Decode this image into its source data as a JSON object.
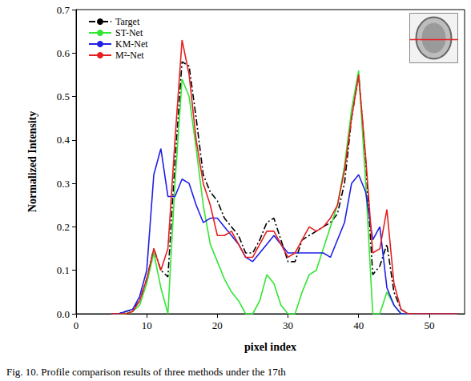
{
  "chart_data": {
    "type": "line",
    "caption": "Fig. 10. Profile comparison results of three methods under the 17th",
    "x_label": "pixel index",
    "y_label": "Normalized Intensity",
    "x": [
      5,
      6,
      7,
      8,
      9,
      10,
      11,
      12,
      13,
      14,
      15,
      16,
      17,
      18,
      19,
      20,
      21,
      22,
      23,
      24,
      25,
      26,
      27,
      28,
      29,
      30,
      31,
      32,
      33,
      34,
      35,
      36,
      37,
      38,
      39,
      40,
      41,
      42,
      43,
      44,
      45,
      46,
      47,
      48,
      49,
      50,
      51,
      52,
      53,
      54
    ],
    "series": [
      {
        "name": "Target",
        "color": "#000000",
        "line_style": "dashdot",
        "values": [
          0,
          0,
          0.005,
          0.01,
          0.03,
          0.08,
          0.15,
          0.1,
          0.085,
          0.35,
          0.58,
          0.57,
          0.45,
          0.32,
          0.28,
          0.26,
          0.22,
          0.2,
          0.18,
          0.14,
          0.14,
          0.17,
          0.21,
          0.22,
          0.17,
          0.12,
          0.12,
          0.17,
          0.18,
          0.19,
          0.2,
          0.21,
          0.23,
          0.3,
          0.45,
          0.55,
          0.35,
          0.09,
          0.11,
          0.16,
          0.05,
          0.01,
          0,
          0,
          0,
          0,
          0,
          0,
          0,
          0
        ]
      },
      {
        "name": "ST-Net",
        "color": "#33e633",
        "line_style": "solid",
        "values": [
          0,
          0,
          0,
          0.005,
          0.02,
          0.07,
          0.14,
          0.06,
          0,
          0.3,
          0.54,
          0.5,
          0.38,
          0.25,
          0.16,
          0.12,
          0.08,
          0.05,
          0.03,
          0,
          0,
          0.03,
          0.09,
          0.07,
          0.02,
          0,
          0,
          0.05,
          0.09,
          0.1,
          0.15,
          0.2,
          0.25,
          0.34,
          0.47,
          0.56,
          0.3,
          0,
          0,
          0.05,
          0.02,
          0,
          0,
          0,
          0,
          0,
          0,
          0,
          0,
          0
        ]
      },
      {
        "name": "KM-Net",
        "color": "#1f1fe6",
        "line_style": "solid",
        "values": [
          0,
          0,
          0.005,
          0.01,
          0.04,
          0.1,
          0.32,
          0.38,
          0.27,
          0.27,
          0.31,
          0.3,
          0.25,
          0.21,
          0.22,
          0.22,
          0.2,
          0.18,
          0.16,
          0.13,
          0.12,
          0.14,
          0.16,
          0.18,
          0.16,
          0.14,
          0.14,
          0.14,
          0.14,
          0.14,
          0.14,
          0.13,
          0.17,
          0.21,
          0.3,
          0.32,
          0.28,
          0.17,
          0.2,
          0.06,
          0.02,
          0,
          0,
          0,
          0,
          0,
          0,
          0,
          0,
          0
        ]
      },
      {
        "name": "M²-Net",
        "color": "#e61f1f",
        "line_style": "solid",
        "values": [
          0,
          0,
          0,
          0.005,
          0.03,
          0.08,
          0.15,
          0.1,
          0.15,
          0.4,
          0.63,
          0.55,
          0.4,
          0.3,
          0.25,
          0.18,
          0.18,
          0.19,
          0.16,
          0.13,
          0.13,
          0.16,
          0.19,
          0.19,
          0.16,
          0.13,
          0.14,
          0.17,
          0.2,
          0.19,
          0.2,
          0.22,
          0.25,
          0.33,
          0.45,
          0.55,
          0.36,
          0.14,
          0.15,
          0.24,
          0.07,
          0.01,
          0,
          0,
          0,
          0,
          0,
          0,
          0,
          0
        ]
      }
    ],
    "xlim": [
      0,
      55
    ],
    "xticks": [
      0,
      10,
      20,
      30,
      40,
      50
    ],
    "ylim": [
      0,
      0.7
    ],
    "yticks": [
      {
        "value": 0,
        "label": "0.0"
      },
      0.1,
      0.2,
      0.3,
      0.4,
      0.5,
      0.6,
      0.7
    ],
    "grid": false,
    "legend": "upper left"
  }
}
